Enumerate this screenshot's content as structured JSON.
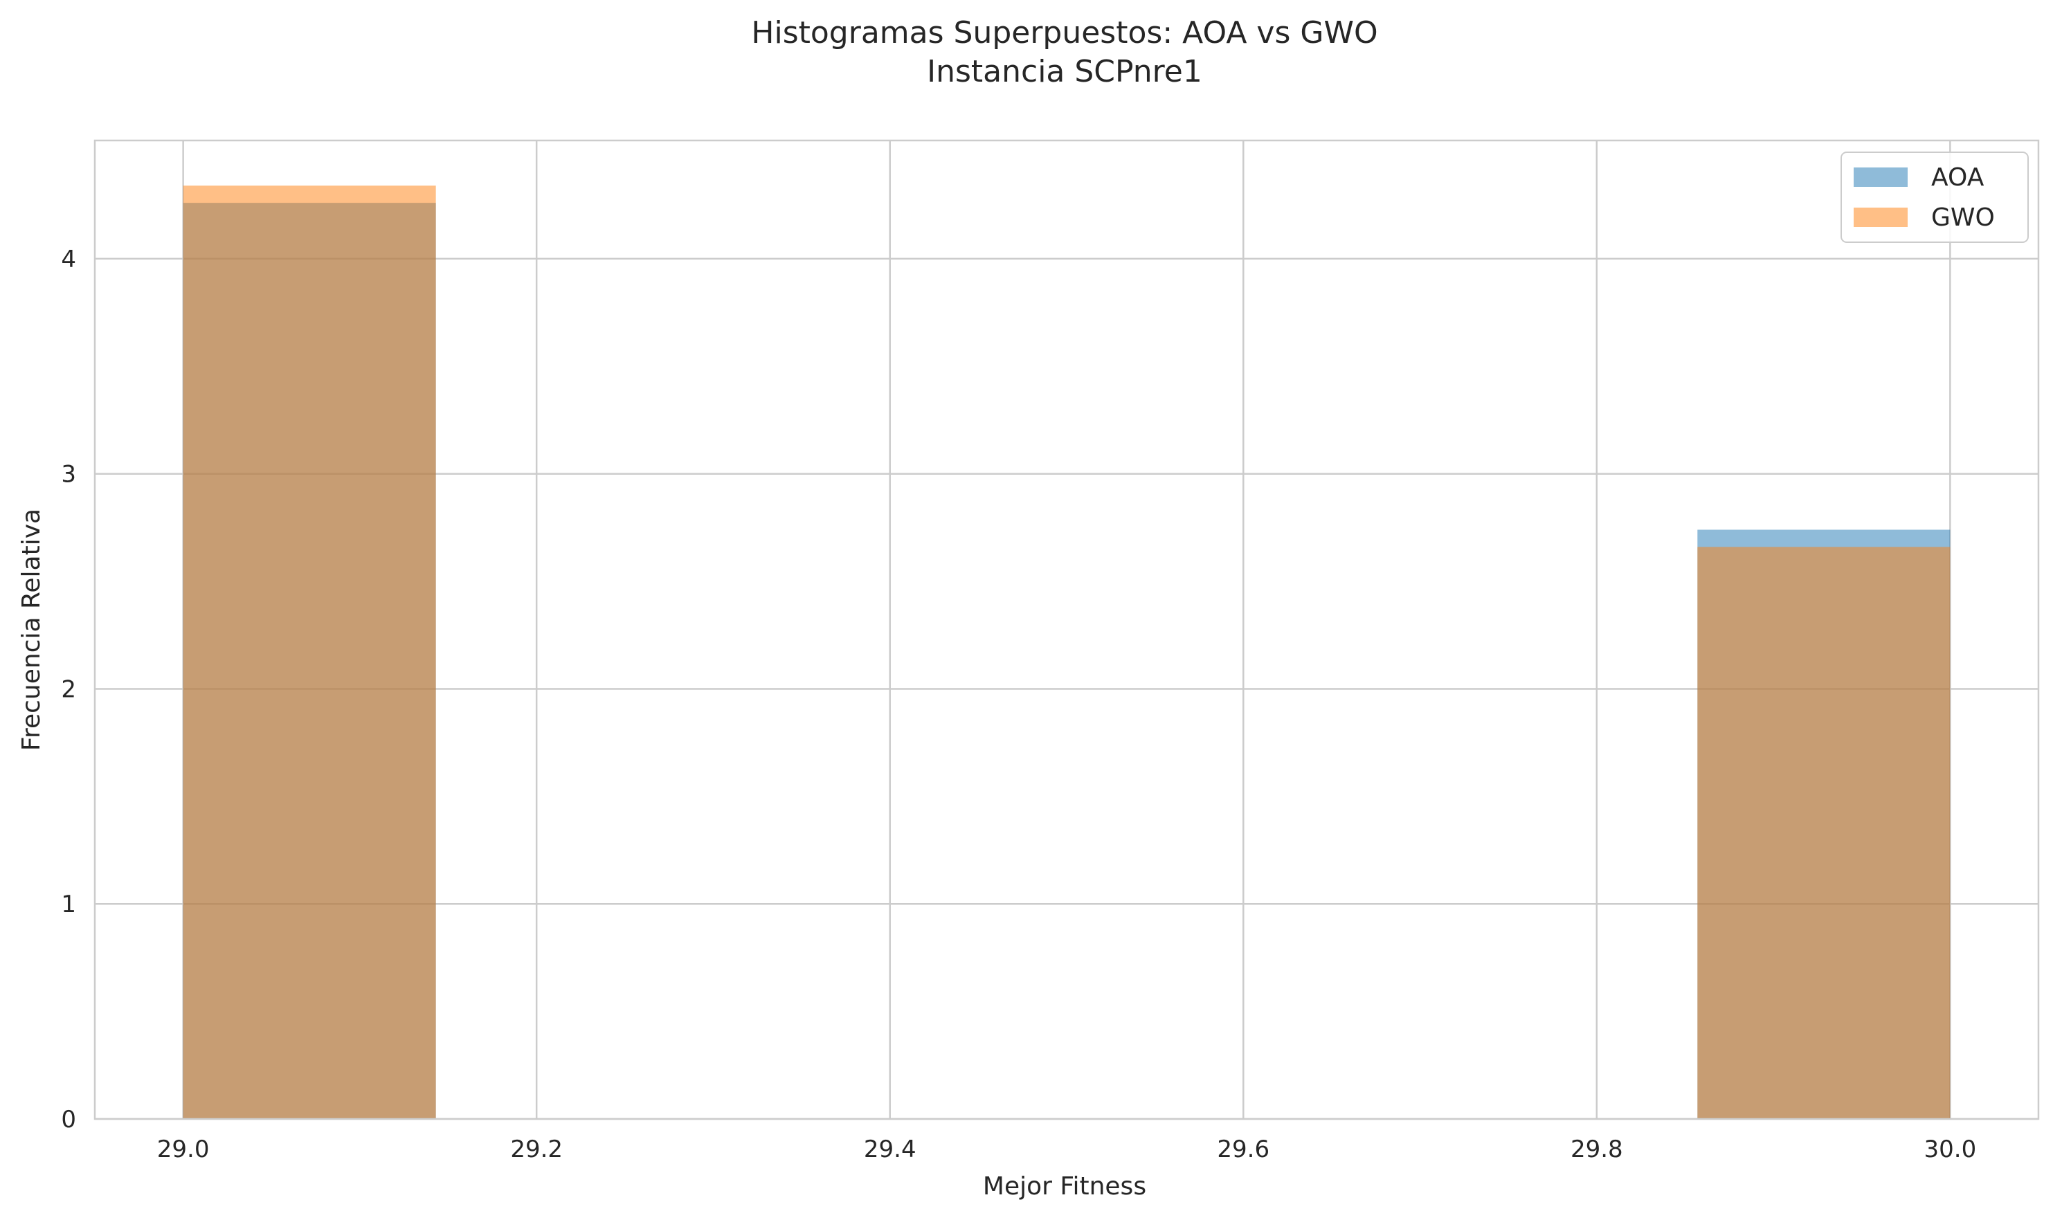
{
  "chart_data": {
    "type": "histogram",
    "title": "Histogramas Superpuestos: AOA vs GWO",
    "subtitle": "Instancia SCPnre1",
    "xlabel": "Mejor Fitness",
    "ylabel": "Frecuencia Relativa",
    "xlim": [
      28.95,
      30.05
    ],
    "ylim": [
      0,
      4.55
    ],
    "xticks": [
      29.0,
      29.2,
      29.4,
      29.6,
      29.8,
      30.0
    ],
    "xtick_labels": [
      "29.0",
      "29.2",
      "29.4",
      "29.6",
      "29.8",
      "30.0"
    ],
    "yticks": [
      0,
      1,
      2,
      3,
      4
    ],
    "ytick_labels": [
      "0",
      "1",
      "2",
      "3",
      "4"
    ],
    "grid": true,
    "legend_position": "top-right",
    "series": [
      {
        "name": "AOA",
        "color": "#1f77b4",
        "opacity": 0.5,
        "bins": [
          {
            "x0": 29.0,
            "x1": 29.143,
            "value": 4.26
          },
          {
            "x0": 29.857,
            "x1": 30.0,
            "value": 2.74
          }
        ]
      },
      {
        "name": "GWO",
        "color": "#ff7f0e",
        "opacity": 0.5,
        "bins": [
          {
            "x0": 29.0,
            "x1": 29.143,
            "value": 4.34
          },
          {
            "x0": 29.857,
            "x1": 30.0,
            "value": 2.66
          }
        ]
      }
    ]
  }
}
